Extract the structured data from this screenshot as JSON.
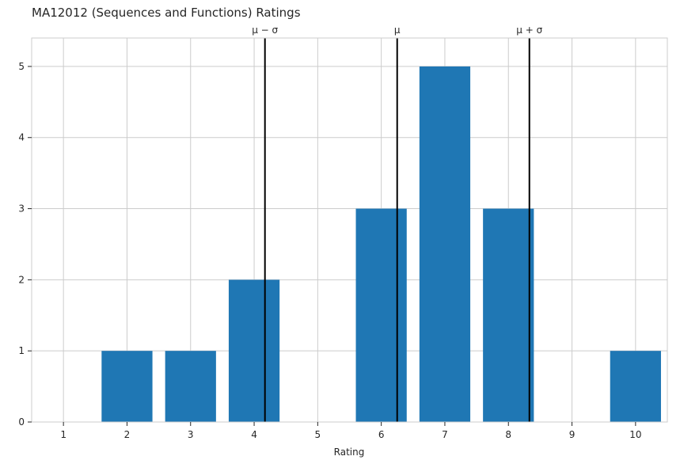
{
  "chart_data": {
    "type": "bar",
    "title": "MA12012 (Sequences and Functions) Ratings",
    "xlabel": "Rating",
    "ylabel": "",
    "categories": [
      "1",
      "2",
      "3",
      "4",
      "5",
      "6",
      "7",
      "8",
      "9",
      "10"
    ],
    "x": [
      1,
      2,
      3,
      4,
      5,
      6,
      7,
      8,
      9,
      10
    ],
    "values": [
      0,
      1,
      1,
      2,
      0,
      3,
      5,
      3,
      0,
      1
    ],
    "xlim": [
      0.5,
      10.5
    ],
    "ylim": [
      0,
      5.4
    ],
    "yticks": [
      0,
      1,
      2,
      3,
      4,
      5
    ],
    "grid": true,
    "reference_lines": [
      {
        "label": "μ − σ",
        "x": 4.17
      },
      {
        "label": "μ",
        "x": 6.25
      },
      {
        "label": "μ + σ",
        "x": 8.33
      }
    ],
    "colors": {
      "bar": "#1f77b4",
      "reference_line": "#000000",
      "grid": "#cccccc",
      "frame": "#cccccc",
      "text": "#262626"
    }
  }
}
